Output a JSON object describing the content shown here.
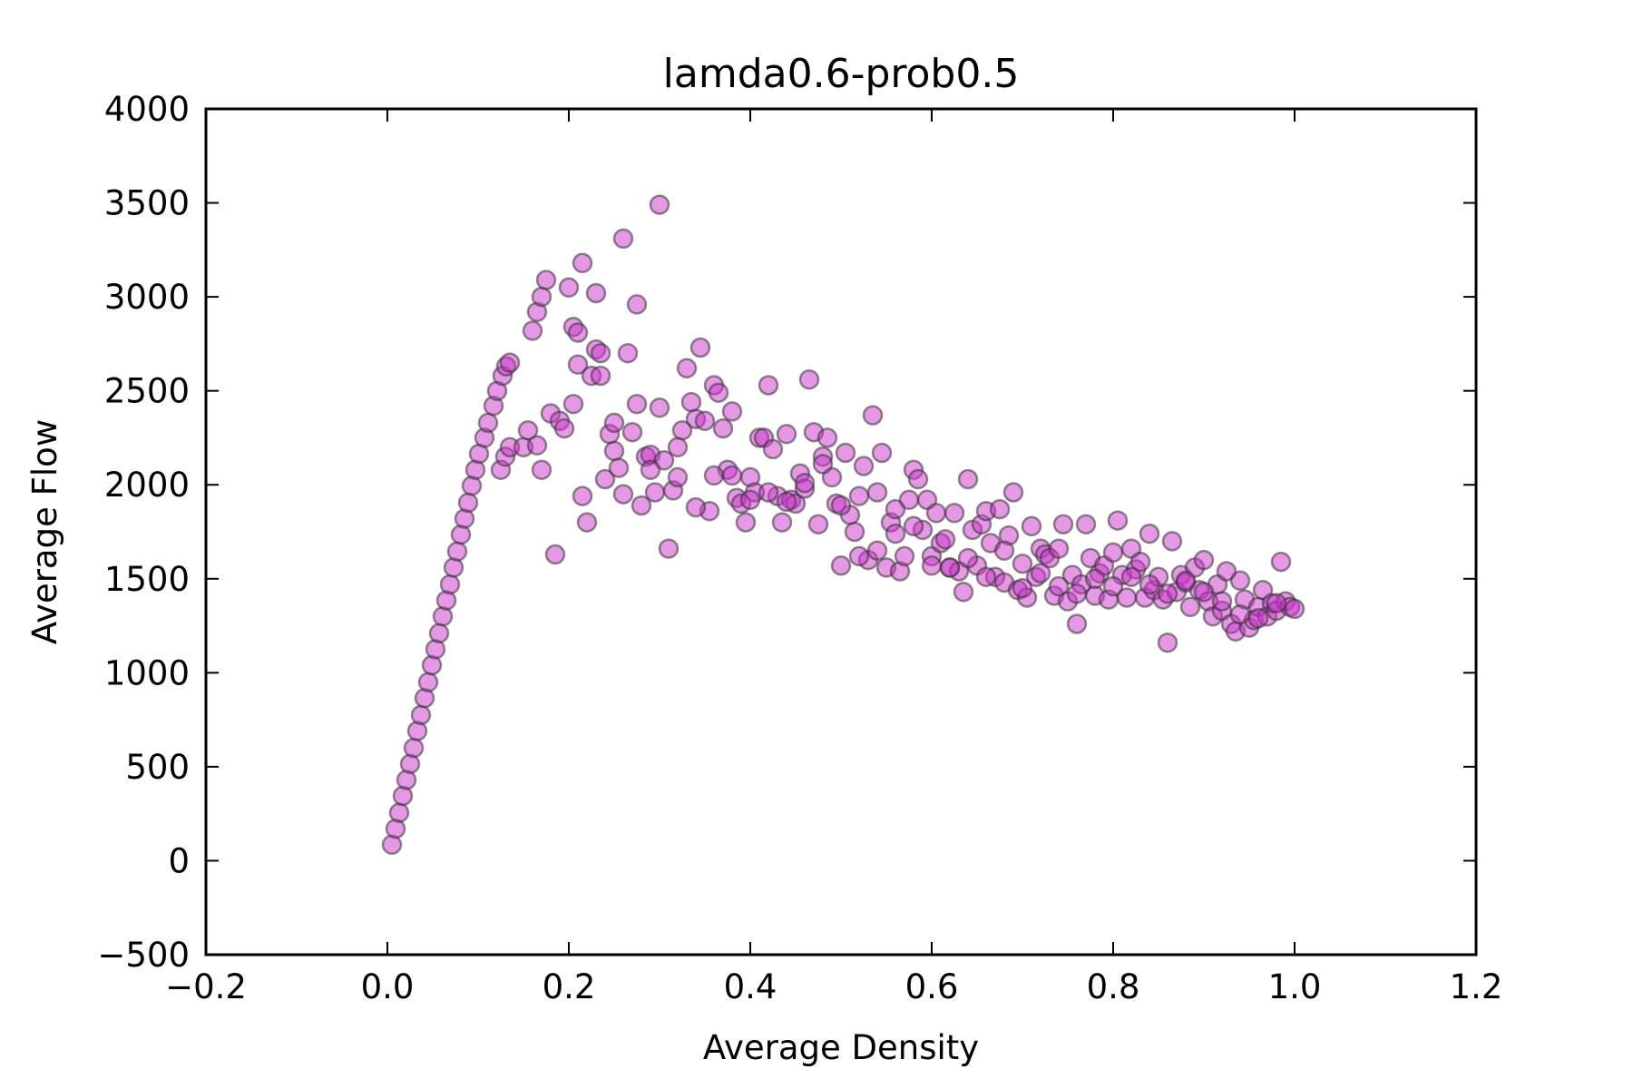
{
  "chart_data": {
    "type": "scatter",
    "title": "lamda0.6-prob0.5",
    "xlabel": "Average Density",
    "ylabel": "Average Flow",
    "xlim": [
      -0.2,
      1.2
    ],
    "ylim": [
      -500,
      4000
    ],
    "xticks": [
      "−0.2",
      "0.0",
      "0.2",
      "0.4",
      "0.6",
      "0.8",
      "1.0",
      "1.2"
    ],
    "yticks": [
      "−500",
      "0",
      "500",
      "1000",
      "1500",
      "2000",
      "2500",
      "3000",
      "3500",
      "4000"
    ],
    "grid": false,
    "legend": "none",
    "marker_color": "#cc33cc",
    "marker_edge": "#333333",
    "series": [
      {
        "points": [
          [
            0.005,
            85
          ],
          [
            0.009,
            170
          ],
          [
            0.013,
            255
          ],
          [
            0.017,
            345
          ],
          [
            0.021,
            430
          ],
          [
            0.025,
            515
          ],
          [
            0.029,
            600
          ],
          [
            0.033,
            690
          ],
          [
            0.037,
            775
          ],
          [
            0.041,
            865
          ],
          [
            0.045,
            950
          ],
          [
            0.049,
            1040
          ],
          [
            0.053,
            1125
          ],
          [
            0.057,
            1210
          ],
          [
            0.061,
            1300
          ],
          [
            0.065,
            1385
          ],
          [
            0.069,
            1470
          ],
          [
            0.073,
            1560
          ],
          [
            0.077,
            1645
          ],
          [
            0.081,
            1735
          ],
          [
            0.085,
            1820
          ],
          [
            0.089,
            1905
          ],
          [
            0.093,
            1995
          ],
          [
            0.097,
            2080
          ],
          [
            0.101,
            2165
          ],
          [
            0.107,
            2250
          ],
          [
            0.111,
            2330
          ],
          [
            0.117,
            2420
          ],
          [
            0.121,
            2500
          ],
          [
            0.127,
            2580
          ],
          [
            0.131,
            2630
          ],
          [
            0.135,
            2650
          ],
          [
            0.125,
            2080
          ],
          [
            0.13,
            2150
          ],
          [
            0.135,
            2200
          ],
          [
            0.15,
            2200
          ],
          [
            0.155,
            2290
          ],
          [
            0.16,
            2820
          ],
          [
            0.165,
            2920
          ],
          [
            0.17,
            3000
          ],
          [
            0.175,
            3090
          ],
          [
            0.18,
            2380
          ],
          [
            0.185,
            1630
          ],
          [
            0.19,
            2340
          ],
          [
            0.195,
            2300
          ],
          [
            0.17,
            2080
          ],
          [
            0.2,
            3050
          ],
          [
            0.205,
            2840
          ],
          [
            0.21,
            2810
          ],
          [
            0.21,
            2640
          ],
          [
            0.215,
            3180
          ],
          [
            0.215,
            1940
          ],
          [
            0.22,
            1800
          ],
          [
            0.225,
            2580
          ],
          [
            0.23,
            3020
          ],
          [
            0.23,
            2720
          ],
          [
            0.235,
            2580
          ],
          [
            0.24,
            2030
          ],
          [
            0.245,
            2270
          ],
          [
            0.25,
            2330
          ],
          [
            0.25,
            2180
          ],
          [
            0.255,
            2090
          ],
          [
            0.26,
            3310
          ],
          [
            0.265,
            2700
          ],
          [
            0.27,
            2280
          ],
          [
            0.275,
            2960
          ],
          [
            0.275,
            2430
          ],
          [
            0.28,
            1890
          ],
          [
            0.285,
            2150
          ],
          [
            0.29,
            2160
          ],
          [
            0.295,
            1960
          ],
          [
            0.3,
            3490
          ],
          [
            0.3,
            2410
          ],
          [
            0.305,
            2130
          ],
          [
            0.31,
            1660
          ],
          [
            0.315,
            1970
          ],
          [
            0.32,
            2040
          ],
          [
            0.325,
            2290
          ],
          [
            0.33,
            2620
          ],
          [
            0.335,
            2440
          ],
          [
            0.34,
            2350
          ],
          [
            0.345,
            2730
          ],
          [
            0.35,
            2340
          ],
          [
            0.355,
            1860
          ],
          [
            0.36,
            2530
          ],
          [
            0.365,
            2490
          ],
          [
            0.37,
            2300
          ],
          [
            0.375,
            2080
          ],
          [
            0.38,
            2390
          ],
          [
            0.385,
            1930
          ],
          [
            0.39,
            1900
          ],
          [
            0.395,
            1800
          ],
          [
            0.4,
            2040
          ],
          [
            0.405,
            1960
          ],
          [
            0.41,
            2250
          ],
          [
            0.415,
            2250
          ],
          [
            0.42,
            2530
          ],
          [
            0.425,
            2190
          ],
          [
            0.43,
            1940
          ],
          [
            0.435,
            1800
          ],
          [
            0.44,
            2270
          ],
          [
            0.445,
            1920
          ],
          [
            0.45,
            1900
          ],
          [
            0.455,
            2060
          ],
          [
            0.46,
            1980
          ],
          [
            0.465,
            2560
          ],
          [
            0.47,
            2280
          ],
          [
            0.475,
            1790
          ],
          [
            0.48,
            2150
          ],
          [
            0.485,
            2250
          ],
          [
            0.49,
            2040
          ],
          [
            0.495,
            1900
          ],
          [
            0.5,
            1570
          ],
          [
            0.505,
            2170
          ],
          [
            0.51,
            1840
          ],
          [
            0.515,
            1750
          ],
          [
            0.52,
            1940
          ],
          [
            0.525,
            2100
          ],
          [
            0.53,
            1600
          ],
          [
            0.535,
            2370
          ],
          [
            0.54,
            1960
          ],
          [
            0.545,
            2170
          ],
          [
            0.55,
            1560
          ],
          [
            0.555,
            1800
          ],
          [
            0.56,
            1870
          ],
          [
            0.565,
            1540
          ],
          [
            0.57,
            1620
          ],
          [
            0.575,
            1920
          ],
          [
            0.58,
            2080
          ],
          [
            0.585,
            2030
          ],
          [
            0.59,
            1760
          ],
          [
            0.595,
            1920
          ],
          [
            0.6,
            1620
          ],
          [
            0.605,
            1850
          ],
          [
            0.61,
            1690
          ],
          [
            0.615,
            1710
          ],
          [
            0.62,
            1560
          ],
          [
            0.625,
            1850
          ],
          [
            0.63,
            1540
          ],
          [
            0.635,
            1430
          ],
          [
            0.64,
            2030
          ],
          [
            0.645,
            1760
          ],
          [
            0.65,
            1570
          ],
          [
            0.655,
            1790
          ],
          [
            0.66,
            1860
          ],
          [
            0.665,
            1690
          ],
          [
            0.67,
            1510
          ],
          [
            0.675,
            1870
          ],
          [
            0.68,
            1480
          ],
          [
            0.685,
            1730
          ],
          [
            0.69,
            1960
          ],
          [
            0.695,
            1440
          ],
          [
            0.7,
            1580
          ],
          [
            0.705,
            1400
          ],
          [
            0.71,
            1780
          ],
          [
            0.715,
            1510
          ],
          [
            0.72,
            1660
          ],
          [
            0.725,
            1630
          ],
          [
            0.73,
            1610
          ],
          [
            0.735,
            1410
          ],
          [
            0.74,
            1660
          ],
          [
            0.745,
            1790
          ],
          [
            0.75,
            1380
          ],
          [
            0.755,
            1520
          ],
          [
            0.76,
            1260
          ],
          [
            0.765,
            1470
          ],
          [
            0.77,
            1790
          ],
          [
            0.775,
            1610
          ],
          [
            0.78,
            1410
          ],
          [
            0.785,
            1530
          ],
          [
            0.79,
            1570
          ],
          [
            0.795,
            1390
          ],
          [
            0.8,
            1640
          ],
          [
            0.805,
            1810
          ],
          [
            0.81,
            1520
          ],
          [
            0.815,
            1400
          ],
          [
            0.82,
            1660
          ],
          [
            0.825,
            1550
          ],
          [
            0.83,
            1590
          ],
          [
            0.835,
            1400
          ],
          [
            0.84,
            1740
          ],
          [
            0.845,
            1440
          ],
          [
            0.85,
            1510
          ],
          [
            0.855,
            1390
          ],
          [
            0.86,
            1160
          ],
          [
            0.865,
            1700
          ],
          [
            0.87,
            1430
          ],
          [
            0.875,
            1520
          ],
          [
            0.88,
            1480
          ],
          [
            0.885,
            1350
          ],
          [
            0.89,
            1560
          ],
          [
            0.895,
            1440
          ],
          [
            0.9,
            1600
          ],
          [
            0.905,
            1380
          ],
          [
            0.91,
            1300
          ],
          [
            0.915,
            1470
          ],
          [
            0.92,
            1330
          ],
          [
            0.925,
            1540
          ],
          [
            0.93,
            1260
          ],
          [
            0.935,
            1220
          ],
          [
            0.94,
            1490
          ],
          [
            0.945,
            1390
          ],
          [
            0.95,
            1240
          ],
          [
            0.955,
            1280
          ],
          [
            0.96,
            1350
          ],
          [
            0.965,
            1440
          ],
          [
            0.97,
            1300
          ],
          [
            0.975,
            1370
          ],
          [
            0.98,
            1330
          ],
          [
            0.985,
            1590
          ],
          [
            0.99,
            1380
          ],
          [
            0.995,
            1350
          ],
          [
            1.0,
            1340
          ],
          [
            0.165,
            2210
          ],
          [
            0.205,
            2430
          ],
          [
            0.235,
            2700
          ],
          [
            0.26,
            1950
          ],
          [
            0.29,
            2080
          ],
          [
            0.32,
            2200
          ],
          [
            0.34,
            1880
          ],
          [
            0.36,
            2050
          ],
          [
            0.38,
            2050
          ],
          [
            0.4,
            1920
          ],
          [
            0.42,
            1960
          ],
          [
            0.44,
            1910
          ],
          [
            0.46,
            2010
          ],
          [
            0.48,
            2110
          ],
          [
            0.5,
            1890
          ],
          [
            0.52,
            1620
          ],
          [
            0.54,
            1650
          ],
          [
            0.56,
            1740
          ],
          [
            0.58,
            1780
          ],
          [
            0.6,
            1570
          ],
          [
            0.62,
            1560
          ],
          [
            0.64,
            1610
          ],
          [
            0.66,
            1510
          ],
          [
            0.68,
            1650
          ],
          [
            0.7,
            1450
          ],
          [
            0.72,
            1530
          ],
          [
            0.74,
            1460
          ],
          [
            0.76,
            1420
          ],
          [
            0.78,
            1500
          ],
          [
            0.8,
            1460
          ],
          [
            0.82,
            1510
          ],
          [
            0.84,
            1470
          ],
          [
            0.86,
            1420
          ],
          [
            0.88,
            1490
          ],
          [
            0.9,
            1430
          ],
          [
            0.92,
            1380
          ],
          [
            0.94,
            1310
          ],
          [
            0.96,
            1290
          ],
          [
            0.98,
            1370
          ]
        ]
      }
    ]
  }
}
